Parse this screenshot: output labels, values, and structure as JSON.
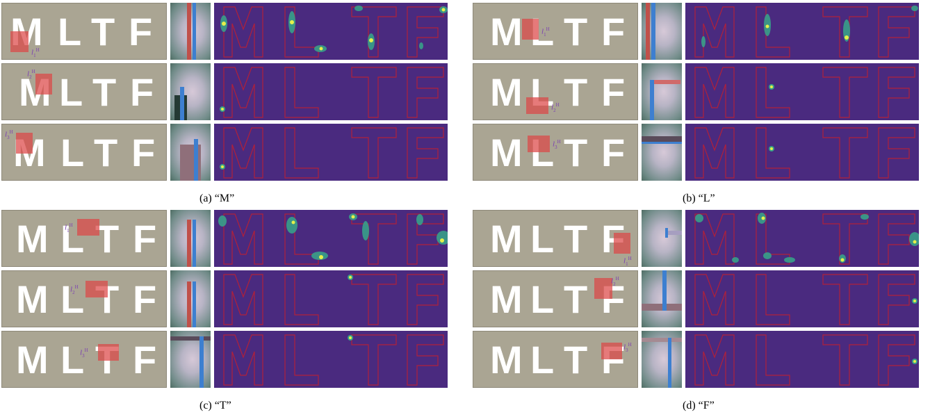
{
  "letters": [
    "M",
    "L",
    "T",
    "F"
  ],
  "hlabel": {
    "letter": "l",
    "sup": "H",
    "subs": [
      "1",
      "2",
      "3"
    ]
  },
  "captions": {
    "a": "(a) “M”",
    "b": "(b) “L”",
    "c": "(c) “T”",
    "d": "(d) “F”"
  },
  "colors": {
    "sign_background": "#aaa593",
    "heatmap_background": "#4a2a7f",
    "letter_outline": "#b0203a",
    "highlight_box": "#dc4646",
    "label_text": "#7b3fb2"
  }
}
